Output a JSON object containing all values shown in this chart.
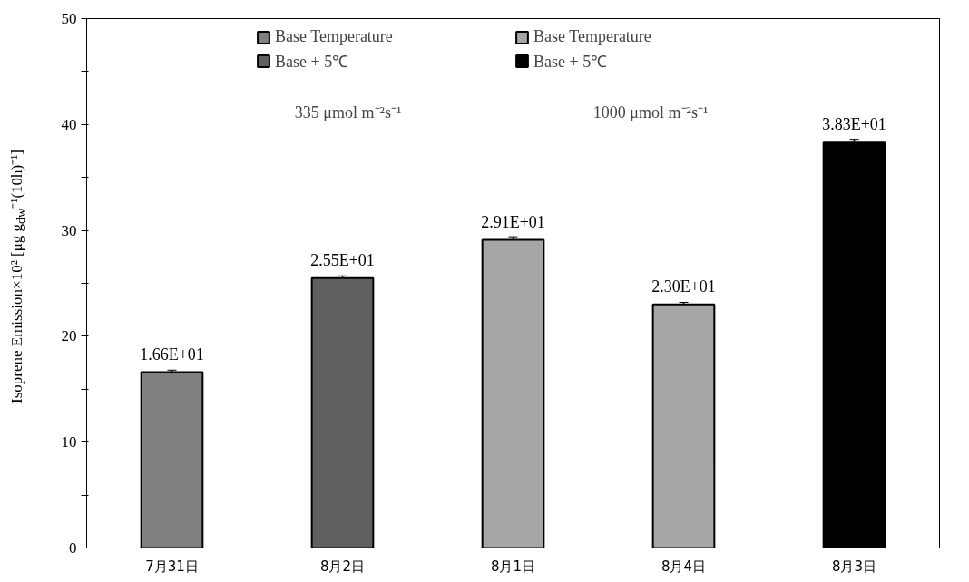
{
  "chart_data": {
    "type": "bar",
    "ylabel": "Isoprene Emission×10² [μg g$_{dw}$⁻¹(10h)⁻¹]",
    "categories": [
      "7月31日",
      "8月2日",
      "8月1日",
      "8月4日",
      "8月3日"
    ],
    "series": [
      {
        "name": "Base Temperature",
        "color": "#808080",
        "values": [
          16.6,
          null,
          null,
          null,
          null
        ],
        "errors": [
          0.2,
          null,
          null,
          null,
          null
        ],
        "value_labels": [
          "1.66E+01",
          null,
          null,
          null,
          null
        ]
      },
      {
        "name": "Base + 5℃",
        "color": "#606060",
        "values": [
          null,
          25.5,
          null,
          null,
          null
        ],
        "errors": [
          null,
          0.2,
          null,
          null,
          null
        ],
        "value_labels": [
          null,
          "2.55E+01",
          null,
          null,
          null
        ]
      },
      {
        "name": "Base Temperature",
        "color": "#a6a6a6",
        "values": [
          null,
          null,
          29.1,
          23.0,
          null
        ],
        "errors": [
          null,
          null,
          0.3,
          0.2,
          null
        ],
        "value_labels": [
          null,
          null,
          "2.91E+01",
          "2.30E+01",
          null
        ]
      },
      {
        "name": "Base + 5℃",
        "color": "#000000",
        "values": [
          null,
          null,
          null,
          null,
          38.3
        ],
        "errors": [
          null,
          null,
          null,
          null,
          0.3
        ],
        "value_labels": [
          null,
          null,
          null,
          null,
          "3.83E+01"
        ]
      }
    ],
    "annotations": [
      "335 μmol m⁻²s⁻¹",
      "1000 μmol m⁻²s⁻¹"
    ],
    "ylim": [
      0,
      50
    ],
    "yticks": [
      0,
      {
        "value": 5,
        "label": null
      },
      10,
      {
        "value": 15,
        "label": null
      },
      20,
      {
        "value": 25,
        "label": null
      },
      30,
      {
        "value": 35,
        "label": null
      },
      40,
      {
        "value": 45,
        "label": null
      },
      50
    ],
    "grid": false,
    "legend": "top"
  }
}
